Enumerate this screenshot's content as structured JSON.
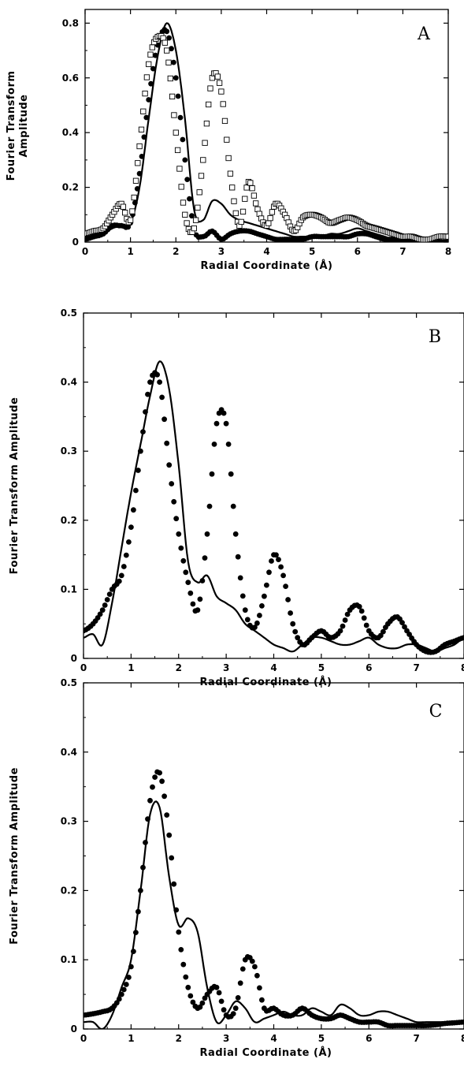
{
  "chart_data": [
    {
      "type": "line",
      "panel_label": "A",
      "xlabel": "Radial Coordinate (Å)",
      "ylabel": [
        "Fourier Transform",
        "Amplitude"
      ],
      "xlim": [
        0,
        8
      ],
      "ylim": [
        0,
        0.85
      ],
      "x_ticks": [
        "0",
        "1",
        "2",
        "3",
        "4",
        "5",
        "6",
        "7",
        "8"
      ],
      "y_ticks": [
        "0",
        "0.2",
        "0.4",
        "0.6",
        "0.8"
      ],
      "series": [
        {
          "style": "solid",
          "x": [
            0,
            0.2,
            0.4,
            0.6,
            0.8,
            1.0,
            1.2,
            1.4,
            1.6,
            1.8,
            2.0,
            2.2,
            2.4,
            2.6,
            2.8,
            3.0,
            3.2,
            3.4,
            3.6,
            3.8,
            4.0,
            4.2,
            4.4,
            4.6,
            4.8,
            5.0,
            5.2,
            5.4,
            5.6,
            5.8,
            6.0,
            6.2,
            6.4,
            6.6,
            6.8,
            7.0,
            7.2,
            7.4,
            7.6,
            7.8,
            8.0
          ],
          "y": [
            0.01,
            0.02,
            0.03,
            0.05,
            0.06,
            0.07,
            0.2,
            0.45,
            0.68,
            0.8,
            0.7,
            0.45,
            0.12,
            0.08,
            0.15,
            0.14,
            0.1,
            0.08,
            0.07,
            0.06,
            0.05,
            0.04,
            0.03,
            0.02,
            0.02,
            0.02,
            0.02,
            0.03,
            0.03,
            0.04,
            0.05,
            0.04,
            0.03,
            0.02,
            0.01,
            0.01,
            0.01,
            0.0,
            0.0,
            0.0,
            0.0
          ]
        },
        {
          "style": "filled-circles",
          "x": [
            0,
            0.2,
            0.4,
            0.6,
            0.8,
            1.0,
            1.2,
            1.4,
            1.6,
            1.8,
            2.0,
            2.2,
            2.4,
            2.6,
            2.8,
            3.0,
            3.2,
            3.4,
            3.6,
            3.8,
            4.0,
            4.2,
            4.4,
            4.6,
            4.8,
            5.0,
            5.2,
            5.4,
            5.6,
            5.8,
            6.0,
            6.2,
            6.4,
            6.6,
            6.8,
            7.0,
            7.2,
            7.4,
            7.6,
            7.8,
            8.0
          ],
          "y": [
            0.01,
            0.02,
            0.03,
            0.06,
            0.06,
            0.07,
            0.25,
            0.52,
            0.72,
            0.77,
            0.6,
            0.3,
            0.05,
            0.02,
            0.04,
            0.01,
            0.03,
            0.04,
            0.04,
            0.03,
            0.02,
            0.01,
            0.01,
            0.01,
            0.01,
            0.02,
            0.02,
            0.02,
            0.02,
            0.02,
            0.03,
            0.03,
            0.02,
            0.01,
            0.01,
            0.0,
            0.0,
            0.0,
            0.0,
            0.0,
            0.0
          ]
        },
        {
          "style": "open-squares",
          "x": [
            0,
            0.2,
            0.4,
            0.6,
            0.8,
            1.0,
            1.2,
            1.4,
            1.6,
            1.8,
            2.0,
            2.2,
            2.4,
            2.6,
            2.8,
            3.0,
            3.2,
            3.4,
            3.6,
            3.8,
            4.0,
            4.2,
            4.4,
            4.6,
            4.8,
            5.0,
            5.2,
            5.4,
            5.6,
            5.8,
            6.0,
            6.2,
            6.4,
            6.6,
            6.8,
            7.0,
            7.2,
            7.4,
            7.6,
            7.8,
            8.0
          ],
          "y": [
            0.03,
            0.04,
            0.05,
            0.1,
            0.14,
            0.08,
            0.35,
            0.65,
            0.75,
            0.7,
            0.4,
            0.1,
            0.05,
            0.3,
            0.6,
            0.55,
            0.25,
            0.06,
            0.22,
            0.12,
            0.06,
            0.14,
            0.1,
            0.04,
            0.09,
            0.1,
            0.09,
            0.07,
            0.08,
            0.09,
            0.08,
            0.06,
            0.05,
            0.04,
            0.03,
            0.02,
            0.02,
            0.01,
            0.01,
            0.02,
            0.02
          ]
        }
      ]
    },
    {
      "type": "line",
      "panel_label": "B",
      "xlabel": "Radial Coordinate (Å)",
      "ylabel": [
        "Fourier Transform Amplitude"
      ],
      "xlim": [
        0,
        8
      ],
      "ylim": [
        0,
        0.5
      ],
      "x_ticks": [
        "0",
        "1",
        "2",
        "3",
        "4",
        "5",
        "6",
        "7",
        "8"
      ],
      "y_ticks": [
        "0",
        "0.1",
        "0.2",
        "0.3",
        "0.4",
        "0.5"
      ],
      "series": [
        {
          "style": "solid",
          "x": [
            0,
            0.2,
            0.4,
            0.6,
            0.8,
            1.0,
            1.2,
            1.4,
            1.6,
            1.8,
            2.0,
            2.2,
            2.4,
            2.6,
            2.8,
            3.0,
            3.2,
            3.4,
            3.6,
            3.8,
            4.0,
            4.2,
            4.4,
            4.6,
            4.8,
            5.0,
            5.2,
            5.4,
            5.6,
            5.8,
            6.0,
            6.2,
            6.4,
            6.6,
            6.8,
            7.0,
            7.2,
            7.4,
            7.6,
            7.8,
            8.0
          ],
          "y": [
            0.03,
            0.035,
            0.02,
            0.08,
            0.16,
            0.24,
            0.31,
            0.38,
            0.43,
            0.39,
            0.28,
            0.14,
            0.11,
            0.12,
            0.09,
            0.08,
            0.07,
            0.05,
            0.04,
            0.03,
            0.02,
            0.015,
            0.01,
            0.02,
            0.03,
            0.03,
            0.025,
            0.02,
            0.02,
            0.025,
            0.03,
            0.02,
            0.015,
            0.015,
            0.02,
            0.02,
            0.015,
            0.01,
            0.015,
            0.02,
            0.03
          ]
        },
        {
          "style": "filled-circles",
          "x": [
            0,
            0.2,
            0.4,
            0.6,
            0.8,
            1.0,
            1.2,
            1.4,
            1.6,
            1.8,
            2.0,
            2.2,
            2.4,
            2.6,
            2.8,
            3.0,
            3.2,
            3.4,
            3.6,
            3.8,
            4.0,
            4.2,
            4.4,
            4.6,
            4.8,
            5.0,
            5.2,
            5.4,
            5.6,
            5.8,
            6.0,
            6.2,
            6.4,
            6.6,
            6.8,
            7.0,
            7.2,
            7.4,
            7.6,
            7.8,
            8.0
          ],
          "y": [
            0.04,
            0.05,
            0.07,
            0.1,
            0.12,
            0.19,
            0.3,
            0.4,
            0.4,
            0.28,
            0.18,
            0.11,
            0.07,
            0.18,
            0.34,
            0.34,
            0.18,
            0.07,
            0.045,
            0.09,
            0.15,
            0.12,
            0.05,
            0.02,
            0.03,
            0.04,
            0.03,
            0.04,
            0.07,
            0.075,
            0.04,
            0.03,
            0.05,
            0.06,
            0.04,
            0.02,
            0.01,
            0.01,
            0.02,
            0.025,
            0.03
          ]
        }
      ]
    },
    {
      "type": "line",
      "panel_label": "C",
      "xlabel": "Radial Coordinate (Å)",
      "ylabel": [
        "Fourier Transform Amplitude"
      ],
      "xlim": [
        0,
        8
      ],
      "ylim": [
        0,
        0.5
      ],
      "x_ticks": [
        "0",
        "1",
        "2",
        "3",
        "4",
        "5",
        "6",
        "7",
        "8"
      ],
      "y_ticks": [
        "0",
        "0.1",
        "0.2",
        "0.3",
        "0.4",
        "0.5"
      ],
      "series": [
        {
          "style": "solid",
          "x": [
            0,
            0.2,
            0.4,
            0.6,
            0.8,
            1.0,
            1.2,
            1.4,
            1.6,
            1.8,
            2.0,
            2.2,
            2.4,
            2.6,
            2.8,
            3.0,
            3.2,
            3.4,
            3.6,
            3.8,
            4.0,
            4.2,
            4.4,
            4.6,
            4.8,
            5.0,
            5.2,
            5.4,
            5.6,
            5.8,
            6.0,
            6.2,
            6.4,
            6.6,
            6.8,
            7.0,
            7.2,
            7.4,
            7.6,
            7.8,
            8.0
          ],
          "y": [
            0.01,
            0.01,
            0.0,
            0.02,
            0.06,
            0.1,
            0.2,
            0.31,
            0.32,
            0.22,
            0.15,
            0.16,
            0.14,
            0.06,
            0.01,
            0.02,
            0.04,
            0.03,
            0.01,
            0.015,
            0.02,
            0.025,
            0.02,
            0.02,
            0.03,
            0.025,
            0.02,
            0.035,
            0.03,
            0.02,
            0.02,
            0.025,
            0.025,
            0.02,
            0.015,
            0.01,
            0.01,
            0.01,
            0.01,
            0.01,
            0.01
          ]
        },
        {
          "style": "filled-circles",
          "x": [
            0,
            0.2,
            0.4,
            0.6,
            0.8,
            1.0,
            1.2,
            1.4,
            1.6,
            1.8,
            2.0,
            2.2,
            2.4,
            2.6,
            2.8,
            3.0,
            3.2,
            3.4,
            3.6,
            3.8,
            4.0,
            4.2,
            4.4,
            4.6,
            4.8,
            5.0,
            5.2,
            5.4,
            5.6,
            5.8,
            6.0,
            6.2,
            6.4,
            6.6,
            6.8,
            7.0,
            7.2,
            7.4,
            7.6,
            7.8,
            8.0
          ],
          "y": [
            0.02,
            0.022,
            0.025,
            0.03,
            0.05,
            0.09,
            0.2,
            0.33,
            0.37,
            0.28,
            0.14,
            0.06,
            0.03,
            0.05,
            0.06,
            0.02,
            0.03,
            0.1,
            0.09,
            0.03,
            0.03,
            0.02,
            0.02,
            0.03,
            0.02,
            0.015,
            0.015,
            0.02,
            0.015,
            0.01,
            0.01,
            0.01,
            0.005,
            0.005,
            0.005,
            0.005,
            0.005,
            0.006,
            0.008,
            0.009,
            0.01
          ]
        }
      ]
    }
  ]
}
